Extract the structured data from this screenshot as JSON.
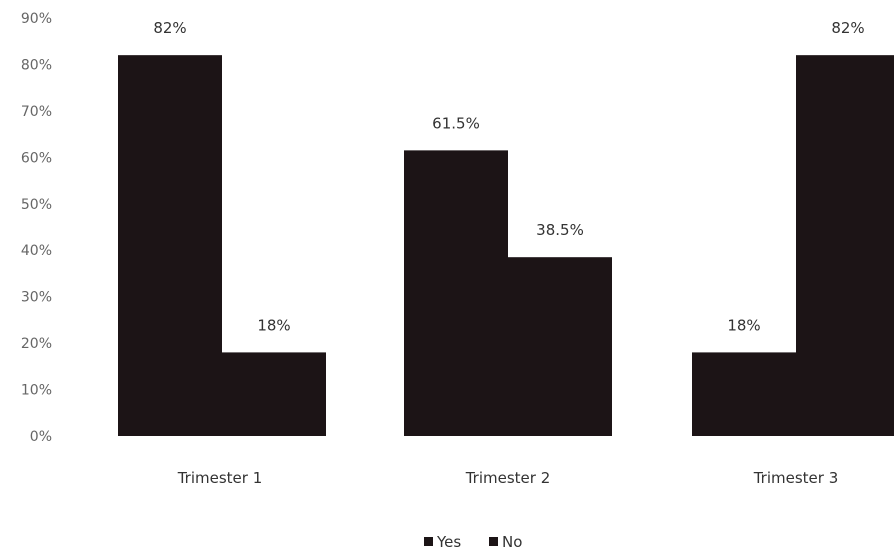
{
  "chart_data": {
    "type": "bar",
    "categories": [
      "Trimester 1",
      "Trimester 2",
      "Trimester 3"
    ],
    "series": [
      {
        "name": "Yes",
        "values": [
          82,
          61.5,
          18
        ],
        "labels": [
          "82%",
          "61.5%",
          "18%"
        ],
        "color": "#1c1416"
      },
      {
        "name": "No",
        "values": [
          18,
          38.5,
          82
        ],
        "labels": [
          "18%",
          "38.5%",
          "82%"
        ],
        "color": "#1c1416"
      }
    ],
    "yticks": [
      "0%",
      "10%",
      "20%",
      "30%",
      "40%",
      "50%",
      "60%",
      "70%",
      "80%",
      "90%"
    ],
    "ylim": [
      0,
      90
    ],
    "legend_position": "bottom",
    "grid": false,
    "title": "",
    "xlabel": "",
    "ylabel": ""
  }
}
